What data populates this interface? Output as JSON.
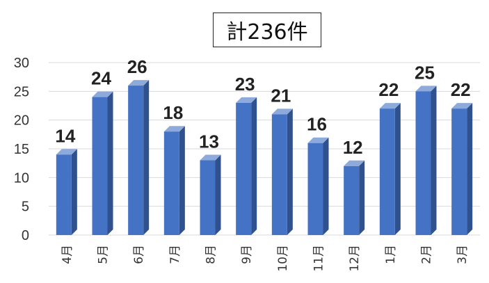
{
  "chart_data": {
    "type": "bar",
    "title": "計236件",
    "categories": [
      "4月",
      "5月",
      "6月",
      "7月",
      "8月",
      "9月",
      "10月",
      "11月",
      "12月",
      "1月",
      "2月",
      "3月"
    ],
    "values": [
      14,
      24,
      26,
      18,
      13,
      23,
      21,
      16,
      12,
      22,
      25,
      22
    ],
    "ylim": [
      0,
      30
    ],
    "yticks": [
      "0",
      "5",
      "10",
      "15",
      "20",
      "25",
      "30"
    ],
    "grid": true,
    "data_labels": true,
    "colors": {
      "bar_front": "#4472c4",
      "bar_side": "#2f528f",
      "bar_top": "#8eaadb"
    }
  }
}
